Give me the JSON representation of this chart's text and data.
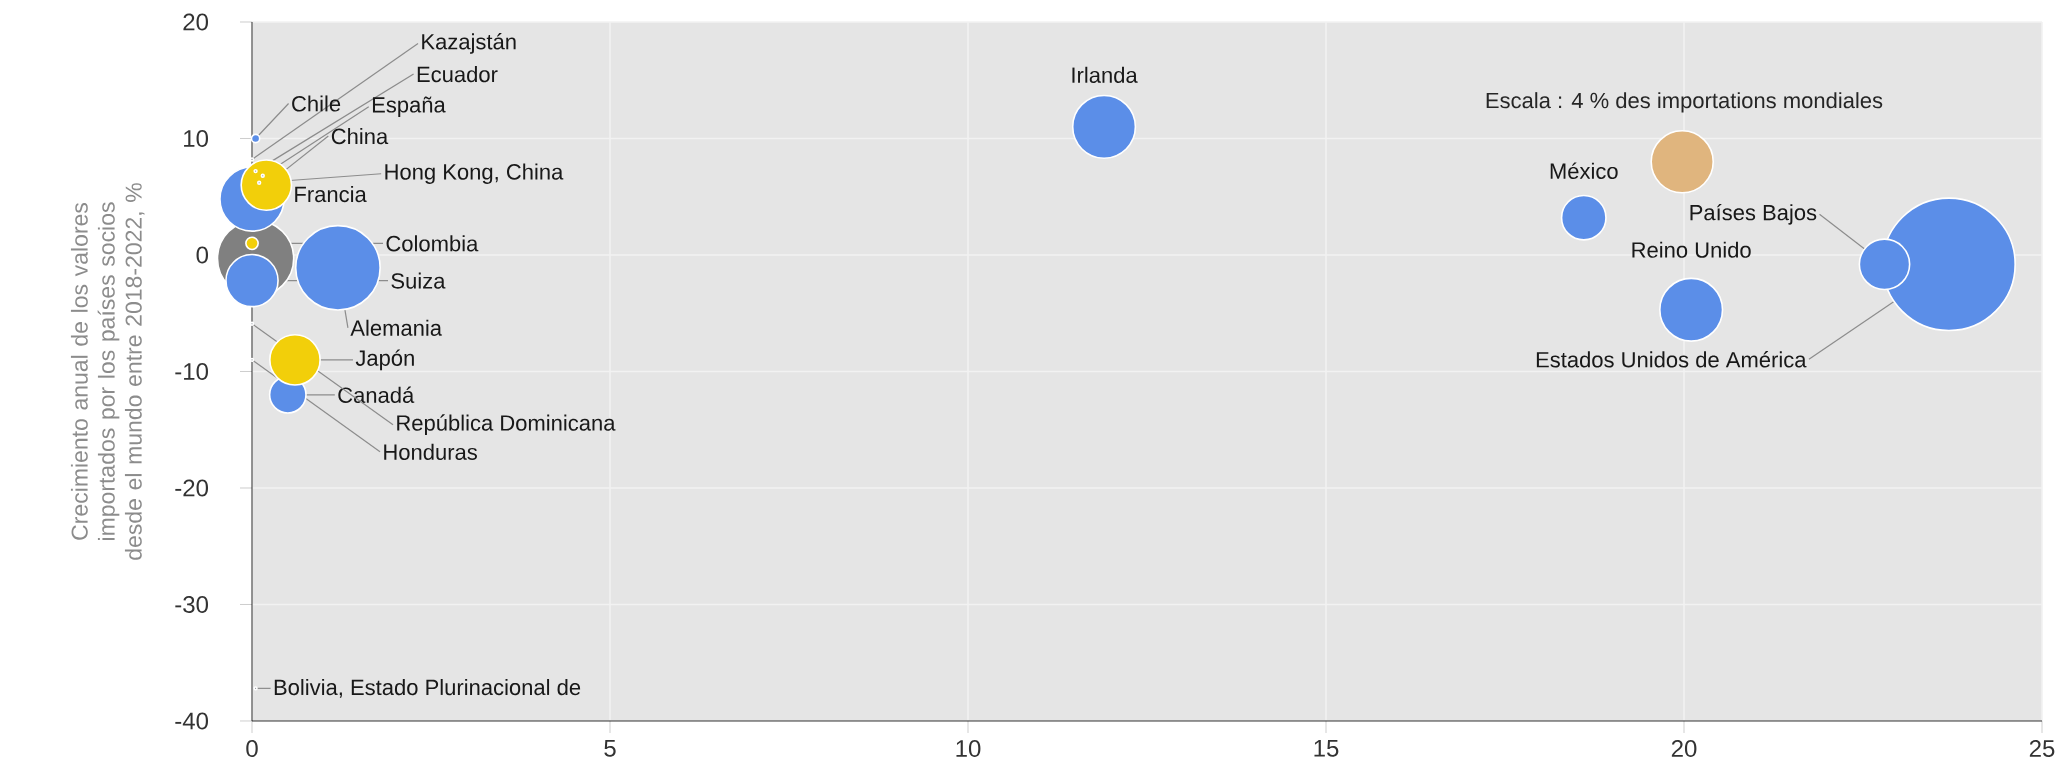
{
  "chart_data": {
    "type": "bubble",
    "ylabel": "Crecimiento anual de los valores importados por los países socios desde el mundo entre 2018-2022, %",
    "xlim": [
      0,
      25
    ],
    "xticks": [
      0,
      5,
      10,
      15,
      20,
      25
    ],
    "ylim": [
      -40,
      20
    ],
    "yticks": [
      -40,
      -30,
      -20,
      -10,
      0,
      10,
      20
    ],
    "grid": true,
    "size_legend": [
      {
        "value": 4,
        "label": "Escala : 4 % des importations mondiales"
      }
    ],
    "series": [
      {
        "color": "#808080",
        "x": [
          0.05
        ],
        "values": [
          -0.3
        ],
        "sizes": [
          6.3
        ]
      },
      {
        "color": "#5b8ee8",
        "x": [
          23.7,
          1.2,
          0.0,
          11.9,
          20.1,
          0.0,
          22.8,
          18.6,
          0.5,
          0.05
        ],
        "values": [
          -0.8,
          -1.1,
          4.8,
          11.0,
          -4.7,
          -2.2,
          -0.8,
          3.2,
          -12.0,
          10.0
        ],
        "sizes": [
          18.7,
          7.7,
          4.5,
          4.3,
          4.3,
          3.0,
          2.8,
          2.2,
          1.5,
          0.1
        ]
      },
      {
        "color": "#f2cf0a",
        "x": [
          0.2,
          0.6,
          0.0
        ],
        "values": [
          6.0,
          -9.0,
          1.0
        ],
        "sizes": [
          2.8,
          2.8,
          0.2
        ]
      },
      {
        "color": "#8a8f98",
        "x": [
          0.0,
          0.05,
          0.15,
          0.1,
          0.0,
          0.0,
          0.05
        ],
        "values": [
          8.2,
          7.2,
          6.8,
          6.2,
          -5.9,
          -9.0,
          -37.2
        ],
        "sizes": [
          0.02,
          0.02,
          0.02,
          0.02,
          0.02,
          0.02,
          0.02
        ]
      }
    ],
    "annotations": [
      {
        "text": "Kazajstán",
        "x": 0.0,
        "y": 8.2
      },
      {
        "text": "Ecuador",
        "x": 0.05,
        "y": 7.2
      },
      {
        "text": "Chile",
        "x": 0.05,
        "y": 10.0
      },
      {
        "text": "España",
        "x": 0.15,
        "y": 6.8
      },
      {
        "text": "China",
        "x": 0.2,
        "y": 6.0
      },
      {
        "text": "Hong Kong, China",
        "x": 0.1,
        "y": 6.2
      },
      {
        "text": "Francia",
        "x": 0.0,
        "y": 4.8
      },
      {
        "text": "Colombia",
        "x": 0.0,
        "y": 1.0
      },
      {
        "text": "Suiza",
        "x": 0.0,
        "y": -2.2
      },
      {
        "text": "Alemania",
        "x": 1.2,
        "y": -1.1
      },
      {
        "text": "Japón",
        "x": 0.6,
        "y": -9.0
      },
      {
        "text": "Canadá",
        "x": 0.5,
        "y": -12.0
      },
      {
        "text": "República Dominicana",
        "x": 0.0,
        "y": -5.9
      },
      {
        "text": "Honduras",
        "x": 0.0,
        "y": -9.0
      },
      {
        "text": "Bolivia, Estado Plurinacional de",
        "x": 0.05,
        "y": -37.2
      },
      {
        "text": "Irlanda",
        "x": 11.9,
        "y": 11.0
      },
      {
        "text": "México",
        "x": 18.6,
        "y": 3.2
      },
      {
        "text": "Países Bajos",
        "x": 22.8,
        "y": -0.8
      },
      {
        "text": "Reino Unido",
        "x": 20.1,
        "y": -4.7
      },
      {
        "text": "Estados Unidos de América",
        "x": 23.7,
        "y": -0.8
      }
    ]
  }
}
